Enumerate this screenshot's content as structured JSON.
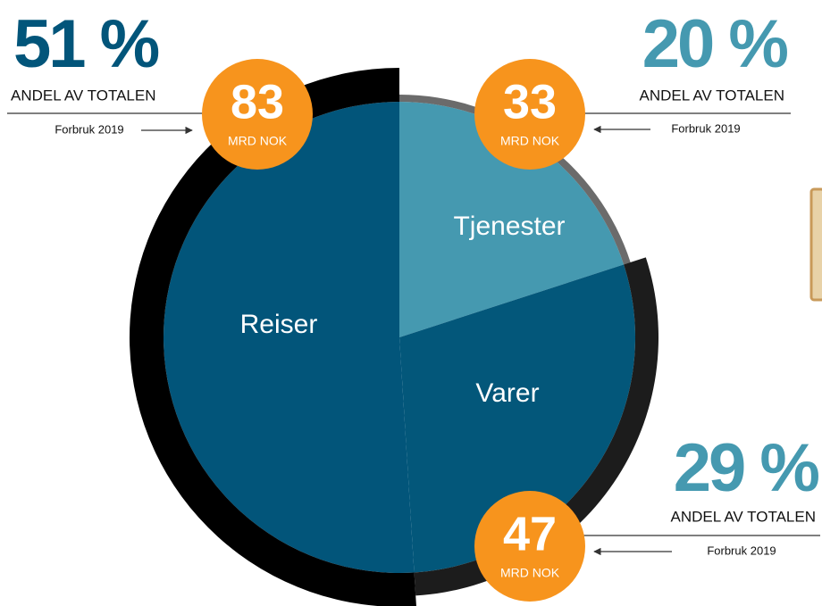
{
  "chart_data": {
    "type": "pie",
    "categories": [
      "Tjenester",
      "Varer",
      "Reiser"
    ],
    "values": [
      20,
      29,
      51
    ],
    "value_labels": [
      "20 %",
      "29 %",
      "51 %"
    ],
    "colors": [
      "#4599b0",
      "#03577a",
      "#02557a"
    ],
    "ring_colors": [
      "#6b6b6b",
      "#1c1c1c",
      "#000000"
    ],
    "amounts": [
      33,
      47,
      83
    ],
    "amount_unit": "MRD NOK",
    "share_label": "ANDEL AV TOTALEN",
    "period_label": "Forbruk 2019"
  }
}
